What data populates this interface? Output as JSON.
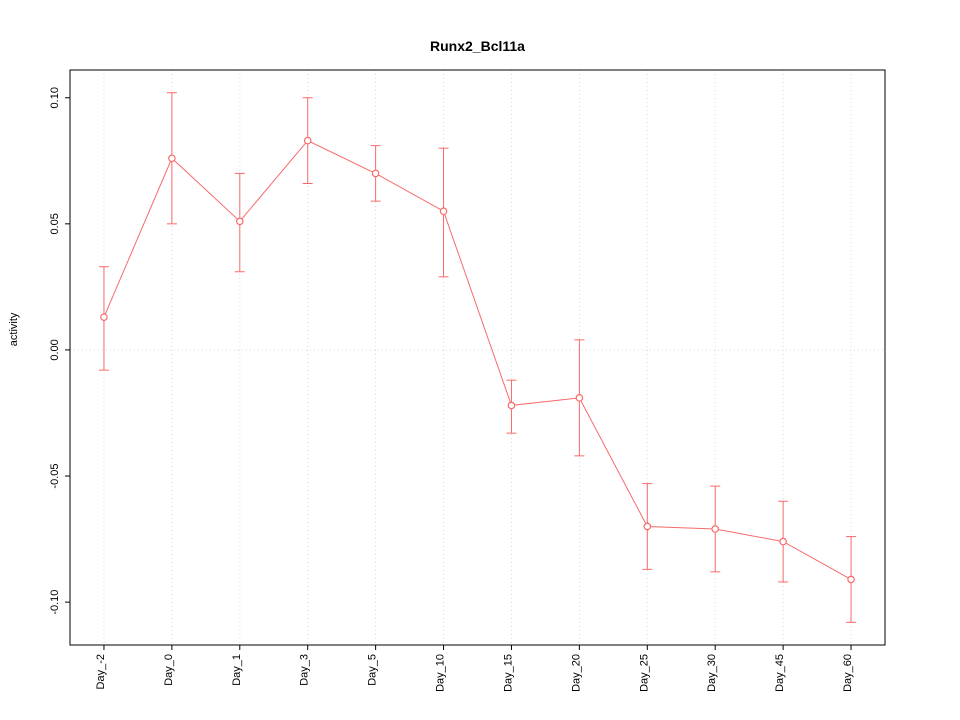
{
  "title": "Runx2_Bcl11a",
  "chart_data": {
    "type": "line",
    "title": "Runx2_Bcl11a",
    "xlabel": "",
    "ylabel": "activity",
    "categories": [
      "Day_-2",
      "Day_0",
      "Day_1",
      "Day_3",
      "Day_5",
      "Day_10",
      "Day_15",
      "Day_20",
      "Day_25",
      "Day_30",
      "Day_45",
      "Day_60"
    ],
    "series": [
      {
        "name": "activity",
        "values": [
          0.013,
          0.076,
          0.051,
          0.083,
          0.07,
          0.055,
          -0.022,
          -0.019,
          -0.07,
          -0.071,
          -0.076,
          -0.091
        ],
        "error_low": [
          -0.008,
          0.05,
          0.031,
          0.066,
          0.059,
          0.029,
          -0.033,
          -0.042,
          -0.087,
          -0.088,
          -0.092,
          -0.108
        ],
        "error_high": [
          0.033,
          0.102,
          0.07,
          0.1,
          0.081,
          0.08,
          -0.012,
          0.004,
          -0.053,
          -0.054,
          -0.06,
          -0.074
        ]
      }
    ],
    "yticks": [
      -0.1,
      -0.05,
      0.0,
      0.05,
      0.1
    ],
    "ylim": [
      -0.117,
      0.111
    ],
    "grid": "vertical dotted at each category, horizontal dotted at 0",
    "legend": "none",
    "colors": {
      "line": "#f86a6a",
      "grid": "#d8d8d8",
      "axis": "#000000",
      "background": "#ffffff"
    }
  }
}
